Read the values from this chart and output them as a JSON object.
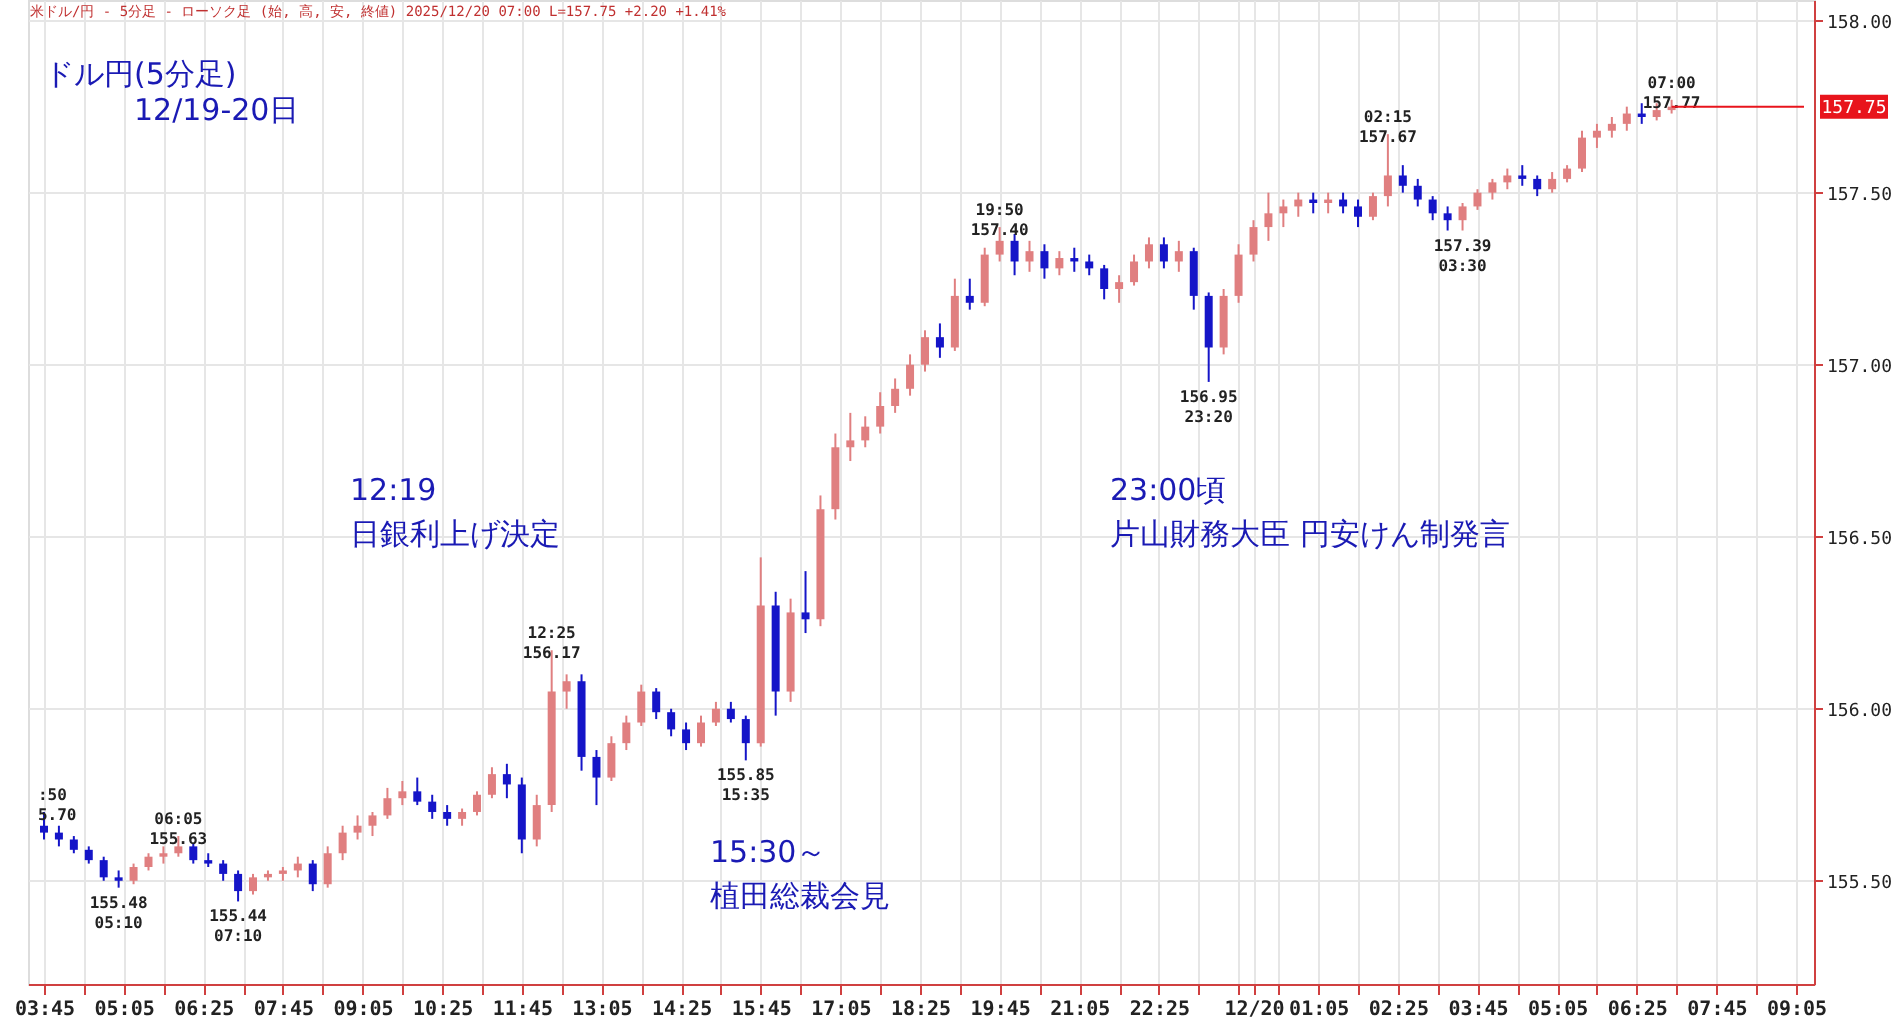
{
  "chart_data": {
    "type": "candlestick",
    "title": "ドル円(5分足)\n12/19-20日",
    "subtitle": "米ドル/円 - 5分足 - ローソク足 (始, 高, 安, 終値)  2025/12/20 07:00  L=157.75  +2.20  +1.41%",
    "x": [
      "2025-12-19T03:45",
      "2025-12-19T04:00",
      "2025-12-19T04:15",
      "2025-12-19T04:30",
      "2025-12-19T04:45",
      "2025-12-19T05:00",
      "2025-12-19T05:15",
      "2025-12-19T05:30",
      "2025-12-19T05:45",
      "2025-12-19T06:00",
      "2025-12-19T06:15",
      "2025-12-19T06:30",
      "2025-12-19T06:45",
      "2025-12-19T07:00",
      "2025-12-19T07:15",
      "2025-12-19T07:30",
      "2025-12-19T07:45",
      "2025-12-19T08:00",
      "2025-12-19T08:15",
      "2025-12-19T08:30",
      "2025-12-19T08:45",
      "2025-12-19T09:00",
      "2025-12-19T09:15",
      "2025-12-19T09:30",
      "2025-12-19T09:45",
      "2025-12-19T10:00",
      "2025-12-19T10:15",
      "2025-12-19T10:30",
      "2025-12-19T10:45",
      "2025-12-19T11:00",
      "2025-12-19T11:15",
      "2025-12-19T11:30",
      "2025-12-19T11:45",
      "2025-12-19T12:00",
      "2025-12-19T12:15",
      "2025-12-19T12:30",
      "2025-12-19T12:45",
      "2025-12-19T13:00",
      "2025-12-19T13:15",
      "2025-12-19T13:30",
      "2025-12-19T13:45",
      "2025-12-19T14:00",
      "2025-12-19T14:15",
      "2025-12-19T14:30",
      "2025-12-19T14:45",
      "2025-12-19T15:00",
      "2025-12-19T15:15",
      "2025-12-19T15:30",
      "2025-12-19T15:45",
      "2025-12-19T16:00",
      "2025-12-19T16:15",
      "2025-12-19T16:30",
      "2025-12-19T16:45",
      "2025-12-19T17:00",
      "2025-12-19T17:15",
      "2025-12-19T17:30",
      "2025-12-19T17:45",
      "2025-12-19T18:00",
      "2025-12-19T18:15",
      "2025-12-19T18:30",
      "2025-12-19T18:45",
      "2025-12-19T19:00",
      "2025-12-19T19:15",
      "2025-12-19T19:30",
      "2025-12-19T19:45",
      "2025-12-19T20:00",
      "2025-12-19T20:15",
      "2025-12-19T20:30",
      "2025-12-19T20:45",
      "2025-12-19T21:00",
      "2025-12-19T21:15",
      "2025-12-19T21:30",
      "2025-12-19T21:45",
      "2025-12-19T22:00",
      "2025-12-19T22:15",
      "2025-12-19T22:30",
      "2025-12-19T22:45",
      "2025-12-19T23:00",
      "2025-12-19T23:15",
      "2025-12-19T23:30",
      "2025-12-19T23:45",
      "2025-12-20T00:00",
      "2025-12-20T00:15",
      "2025-12-20T00:30",
      "2025-12-20T00:45",
      "2025-12-20T01:00",
      "2025-12-20T01:15",
      "2025-12-20T01:30",
      "2025-12-20T01:45",
      "2025-12-20T02:00",
      "2025-12-20T02:15",
      "2025-12-20T02:30",
      "2025-12-20T02:45",
      "2025-12-20T03:00",
      "2025-12-20T03:15",
      "2025-12-20T03:30",
      "2025-12-20T03:45",
      "2025-12-20T04:00",
      "2025-12-20T04:15",
      "2025-12-20T04:30",
      "2025-12-20T04:45",
      "2025-12-20T05:00",
      "2025-12-20T05:15",
      "2025-12-20T05:30",
      "2025-12-20T05:45",
      "2025-12-20T06:00",
      "2025-12-20T06:15",
      "2025-12-20T06:30",
      "2025-12-20T06:45",
      "2025-12-20T07:00"
    ],
    "ohlc": [
      [
        155.66,
        155.7,
        155.62,
        155.64
      ],
      [
        155.64,
        155.66,
        155.6,
        155.62
      ],
      [
        155.62,
        155.63,
        155.58,
        155.59
      ],
      [
        155.59,
        155.6,
        155.55,
        155.56
      ],
      [
        155.56,
        155.57,
        155.5,
        155.51
      ],
      [
        155.51,
        155.53,
        155.48,
        155.5
      ],
      [
        155.5,
        155.55,
        155.49,
        155.54
      ],
      [
        155.54,
        155.58,
        155.53,
        155.57
      ],
      [
        155.57,
        155.6,
        155.55,
        155.58
      ],
      [
        155.58,
        155.63,
        155.57,
        155.6
      ],
      [
        155.6,
        155.61,
        155.55,
        155.56
      ],
      [
        155.56,
        155.58,
        155.54,
        155.55
      ],
      [
        155.55,
        155.56,
        155.5,
        155.52
      ],
      [
        155.52,
        155.53,
        155.44,
        155.47
      ],
      [
        155.47,
        155.52,
        155.46,
        155.51
      ],
      [
        155.51,
        155.53,
        155.5,
        155.52
      ],
      [
        155.52,
        155.54,
        155.5,
        155.53
      ],
      [
        155.53,
        155.57,
        155.51,
        155.55
      ],
      [
        155.55,
        155.56,
        155.47,
        155.49
      ],
      [
        155.49,
        155.6,
        155.48,
        155.58
      ],
      [
        155.58,
        155.66,
        155.56,
        155.64
      ],
      [
        155.64,
        155.69,
        155.62,
        155.66
      ],
      [
        155.66,
        155.7,
        155.63,
        155.69
      ],
      [
        155.69,
        155.77,
        155.68,
        155.74
      ],
      [
        155.74,
        155.79,
        155.72,
        155.76
      ],
      [
        155.76,
        155.8,
        155.72,
        155.73
      ],
      [
        155.73,
        155.75,
        155.68,
        155.7
      ],
      [
        155.7,
        155.72,
        155.66,
        155.68
      ],
      [
        155.68,
        155.71,
        155.66,
        155.7
      ],
      [
        155.7,
        155.76,
        155.69,
        155.75
      ],
      [
        155.75,
        155.83,
        155.74,
        155.81
      ],
      [
        155.81,
        155.84,
        155.74,
        155.78
      ],
      [
        155.78,
        155.8,
        155.58,
        155.62
      ],
      [
        155.62,
        155.75,
        155.6,
        155.72
      ],
      [
        155.72,
        156.17,
        155.7,
        156.05
      ],
      [
        156.05,
        156.1,
        156.0,
        156.08
      ],
      [
        156.08,
        156.1,
        155.82,
        155.86
      ],
      [
        155.86,
        155.88,
        155.72,
        155.8
      ],
      [
        155.8,
        155.92,
        155.79,
        155.9
      ],
      [
        155.9,
        155.98,
        155.88,
        155.96
      ],
      [
        155.96,
        156.07,
        155.95,
        156.05
      ],
      [
        156.05,
        156.06,
        155.97,
        155.99
      ],
      [
        155.99,
        156.0,
        155.92,
        155.94
      ],
      [
        155.94,
        155.96,
        155.88,
        155.9
      ],
      [
        155.9,
        155.98,
        155.89,
        155.96
      ],
      [
        155.96,
        156.02,
        155.95,
        156.0
      ],
      [
        156.0,
        156.02,
        155.96,
        155.97
      ],
      [
        155.97,
        155.98,
        155.85,
        155.9
      ],
      [
        155.9,
        156.44,
        155.89,
        156.3
      ],
      [
        156.3,
        156.34,
        155.98,
        156.05
      ],
      [
        156.05,
        156.32,
        156.02,
        156.28
      ],
      [
        156.28,
        156.4,
        156.22,
        156.26
      ],
      [
        156.26,
        156.62,
        156.24,
        156.58
      ],
      [
        156.58,
        156.8,
        156.55,
        156.76
      ],
      [
        156.76,
        156.86,
        156.72,
        156.78
      ],
      [
        156.78,
        156.85,
        156.76,
        156.82
      ],
      [
        156.82,
        156.92,
        156.8,
        156.88
      ],
      [
        156.88,
        156.96,
        156.86,
        156.93
      ],
      [
        156.93,
        157.03,
        156.91,
        157.0
      ],
      [
        157.0,
        157.1,
        156.98,
        157.08
      ],
      [
        157.08,
        157.12,
        157.02,
        157.05
      ],
      [
        157.05,
        157.25,
        157.04,
        157.2
      ],
      [
        157.2,
        157.25,
        157.16,
        157.18
      ],
      [
        157.18,
        157.34,
        157.17,
        157.32
      ],
      [
        157.32,
        157.4,
        157.3,
        157.36
      ],
      [
        157.36,
        157.38,
        157.26,
        157.3
      ],
      [
        157.3,
        157.36,
        157.27,
        157.33
      ],
      [
        157.33,
        157.35,
        157.25,
        157.28
      ],
      [
        157.28,
        157.33,
        157.26,
        157.31
      ],
      [
        157.31,
        157.34,
        157.27,
        157.3
      ],
      [
        157.3,
        157.32,
        157.26,
        157.28
      ],
      [
        157.28,
        157.29,
        157.19,
        157.22
      ],
      [
        157.22,
        157.26,
        157.18,
        157.24
      ],
      [
        157.24,
        157.32,
        157.23,
        157.3
      ],
      [
        157.3,
        157.37,
        157.28,
        157.35
      ],
      [
        157.35,
        157.37,
        157.28,
        157.3
      ],
      [
        157.3,
        157.36,
        157.27,
        157.33
      ],
      [
        157.33,
        157.34,
        157.16,
        157.2
      ],
      [
        157.2,
        157.21,
        156.95,
        157.05
      ],
      [
        157.05,
        157.22,
        157.03,
        157.2
      ],
      [
        157.2,
        157.35,
        157.18,
        157.32
      ],
      [
        157.32,
        157.42,
        157.3,
        157.4
      ],
      [
        157.4,
        157.5,
        157.36,
        157.44
      ],
      [
        157.44,
        157.48,
        157.4,
        157.46
      ],
      [
        157.46,
        157.5,
        157.43,
        157.48
      ],
      [
        157.48,
        157.5,
        157.44,
        157.47
      ],
      [
        157.47,
        157.5,
        157.44,
        157.48
      ],
      [
        157.48,
        157.5,
        157.44,
        157.46
      ],
      [
        157.46,
        157.48,
        157.4,
        157.43
      ],
      [
        157.43,
        157.5,
        157.42,
        157.49
      ],
      [
        157.49,
        157.67,
        157.46,
        157.55
      ],
      [
        157.55,
        157.58,
        157.5,
        157.52
      ],
      [
        157.52,
        157.54,
        157.46,
        157.48
      ],
      [
        157.48,
        157.49,
        157.42,
        157.44
      ],
      [
        157.44,
        157.46,
        157.39,
        157.42
      ],
      [
        157.42,
        157.47,
        157.39,
        157.46
      ],
      [
        157.46,
        157.51,
        157.45,
        157.5
      ],
      [
        157.5,
        157.54,
        157.48,
        157.53
      ],
      [
        157.53,
        157.57,
        157.51,
        157.55
      ],
      [
        157.55,
        157.58,
        157.52,
        157.54
      ],
      [
        157.54,
        157.55,
        157.49,
        157.51
      ],
      [
        157.51,
        157.56,
        157.5,
        157.54
      ],
      [
        157.54,
        157.58,
        157.53,
        157.57
      ],
      [
        157.57,
        157.68,
        157.56,
        157.66
      ],
      [
        157.66,
        157.7,
        157.63,
        157.68
      ],
      [
        157.68,
        157.72,
        157.66,
        157.7
      ],
      [
        157.7,
        157.75,
        157.68,
        157.73
      ],
      [
        157.73,
        157.76,
        157.7,
        157.72
      ],
      [
        157.72,
        157.76,
        157.71,
        157.74
      ],
      [
        157.74,
        157.77,
        157.73,
        157.75
      ]
    ],
    "xlim": [
      "2025-12-19T03:39",
      "2025-12-20T09:13"
    ],
    "ylim": [
      155.2,
      158.06
    ],
    "xticks": [
      {
        "value": "2025-12-19T03:45",
        "label": "03:45"
      },
      {
        "value": "2025-12-19T04:25",
        "label": null
      },
      {
        "value": "2025-12-19T05:05",
        "label": "05:05"
      },
      {
        "value": "2025-12-19T05:45",
        "label": null
      },
      {
        "value": "2025-12-19T06:25",
        "label": "06:25"
      },
      {
        "value": "2025-12-19T07:05",
        "label": null
      },
      {
        "value": "2025-12-19T07:45",
        "label": "07:45"
      },
      {
        "value": "2025-12-19T08:25",
        "label": null
      },
      {
        "value": "2025-12-19T09:05",
        "label": "09:05"
      },
      {
        "value": "2025-12-19T09:45",
        "label": null
      },
      {
        "value": "2025-12-19T10:25",
        "label": "10:25"
      },
      {
        "value": "2025-12-19T11:05",
        "label": null
      },
      {
        "value": "2025-12-19T11:45",
        "label": "11:45"
      },
      {
        "value": "2025-12-19T12:25",
        "label": null
      },
      {
        "value": "2025-12-19T13:05",
        "label": "13:05"
      },
      {
        "value": "2025-12-19T13:45",
        "label": null
      },
      {
        "value": "2025-12-19T14:25",
        "label": "14:25"
      },
      {
        "value": "2025-12-19T15:05",
        "label": null
      },
      {
        "value": "2025-12-19T15:45",
        "label": "15:45"
      },
      {
        "value": "2025-12-19T16:25",
        "label": null
      },
      {
        "value": "2025-12-19T17:05",
        "label": "17:05"
      },
      {
        "value": "2025-12-19T17:45",
        "label": null
      },
      {
        "value": "2025-12-19T18:25",
        "label": "18:25"
      },
      {
        "value": "2025-12-19T19:05",
        "label": null
      },
      {
        "value": "2025-12-19T19:45",
        "label": "19:45"
      },
      {
        "value": "2025-12-19T20:25",
        "label": null
      },
      {
        "value": "2025-12-19T21:05",
        "label": "21:05"
      },
      {
        "value": "2025-12-19T21:45",
        "label": null
      },
      {
        "value": "2025-12-19T22:25",
        "label": "22:25"
      },
      {
        "value": "2025-12-19T23:05",
        "label": null
      },
      {
        "value": "2025-12-19T23:45",
        "label": null
      },
      {
        "value": "2025-12-20T00:00",
        "label": "12/20"
      },
      {
        "value": "2025-12-20T00:25",
        "label": null
      },
      {
        "value": "2025-12-20T01:05",
        "label": "01:05"
      },
      {
        "value": "2025-12-20T01:45",
        "label": null
      },
      {
        "value": "2025-12-20T02:25",
        "label": "02:25"
      },
      {
        "value": "2025-12-20T03:05",
        "label": null
      },
      {
        "value": "2025-12-20T03:45",
        "label": "03:45"
      },
      {
        "value": "2025-12-20T04:25",
        "label": null
      },
      {
        "value": "2025-12-20T05:05",
        "label": "05:05"
      },
      {
        "value": "2025-12-20T05:45",
        "label": null
      },
      {
        "value": "2025-12-20T06:25",
        "label": "06:25"
      },
      {
        "value": "2025-12-20T07:05",
        "label": null
      },
      {
        "value": "2025-12-20T07:45",
        "label": "07:45"
      },
      {
        "value": "2025-12-20T08:25",
        "label": null
      },
      {
        "value": "2025-12-20T09:05",
        "label": "09:05"
      }
    ],
    "yticks": [
      {
        "value": 155.5,
        "label": "155.50"
      },
      {
        "value": 156,
        "label": "156.00"
      },
      {
        "value": 156.5,
        "label": "156.50"
      },
      {
        "value": 157,
        "label": "157.00"
      },
      {
        "value": 157.5,
        "label": "157.50"
      },
      {
        "value": 158,
        "label": "158.00"
      }
    ],
    "ref_lines": [
      {
        "axis": "y",
        "value": 157.75,
        "label": "157.75",
        "color": "#e8141c"
      }
    ],
    "annotations": [
      {
        "text": ":50\n5.70",
        "x": "2025-12-19T03:45",
        "y": 155.7
      },
      {
        "text": "155.48\n05:10",
        "x": "2025-12-19T05:00",
        "y": 155.48
      },
      {
        "text": "06:05\n155.63",
        "x": "2025-12-19T06:00",
        "y": 155.63
      },
      {
        "text": "155.44\n07:10",
        "x": "2025-12-19T07:00",
        "y": 155.44
      },
      {
        "text": "12:25\n156.17",
        "x": "2025-12-19T12:15",
        "y": 156.17
      },
      {
        "text": "155.85\n15:35",
        "x": "2025-12-19T15:30",
        "y": 155.85
      },
      {
        "text": "19:50\n157.40",
        "x": "2025-12-19T19:45",
        "y": 157.4
      },
      {
        "text": "156.95\n23:20",
        "x": "2025-12-19T23:15",
        "y": 156.95
      },
      {
        "text": "02:15\n157.67",
        "x": "2025-12-20T02:15",
        "y": 157.67
      },
      {
        "text": "157.39\n03:30",
        "x": "2025-12-20T03:30",
        "y": 157.39
      },
      {
        "text": "07:00\n157.77",
        "x": "2025-12-20T07:00",
        "y": 157.77
      },
      "12:19",
      "日銀利上げ決定",
      "15:30～",
      "植田総裁会見",
      "23:00頃",
      "片山財務大臣  円安けん制発言"
    ],
    "grid": true,
    "legend": false
  }
}
